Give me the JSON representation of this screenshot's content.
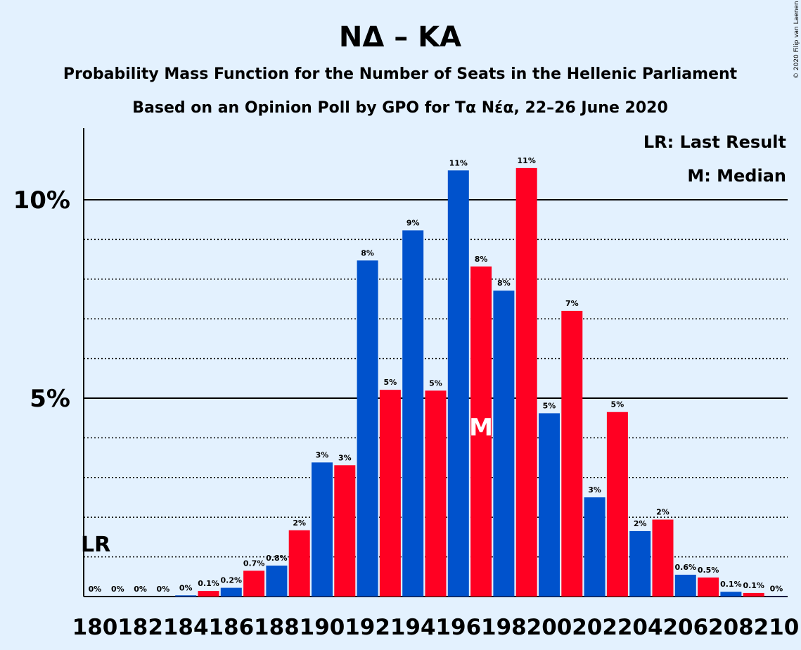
{
  "chart_data": {
    "type": "bar",
    "title": "ΝΔ – ΚΑ",
    "subtitle": "Probability Mass Function for the Number of Seats in the Hellenic Parliament",
    "subtitle2": "Based on an Opinion Poll by GPO for Τα Νέα, 22–26 June 2020",
    "copyright": "© 2020 Filip van Laenen",
    "legend": {
      "lr": "LR: Last Result",
      "median": "M: Median",
      "placement": "top-right"
    },
    "ylim": [
      0,
      11.8
    ],
    "yticks": [
      {
        "value": 5,
        "label": "5%"
      },
      {
        "value": 10,
        "label": "10%"
      }
    ],
    "minor_grid": [
      1,
      2,
      3,
      4,
      6,
      7,
      8,
      9
    ],
    "x_tick_labels": [
      "180",
      "182",
      "184",
      "186",
      "188",
      "190",
      "192",
      "194",
      "196",
      "198",
      "200",
      "202",
      "204",
      "206",
      "208",
      "210"
    ],
    "x": [
      180,
      181,
      182,
      183,
      184,
      185,
      186,
      187,
      188,
      189,
      190,
      191,
      192,
      193,
      194,
      195,
      196,
      197,
      198,
      199,
      200,
      201,
      202,
      203,
      204,
      205,
      206,
      207,
      208,
      209,
      210
    ],
    "values": [
      0,
      0,
      0,
      0,
      0.03,
      0.14,
      0.22,
      0.65,
      0.78,
      1.67,
      3.38,
      3.31,
      8.47,
      5.21,
      9.23,
      5.19,
      10.74,
      8.32,
      7.71,
      10.8,
      4.62,
      7.2,
      2.5,
      4.65,
      1.65,
      1.94,
      0.55,
      0.48,
      0.12,
      0.09,
      0.01
    ],
    "labels": [
      "0%",
      "0%",
      "0%",
      "0%",
      "0%",
      "0.1%",
      "0.2%",
      "0.7%",
      "0.8%",
      "2%",
      "3%",
      "3%",
      "8%",
      "5%",
      "9%",
      "5%",
      "11%",
      "8%",
      "8%",
      "11%",
      "5%",
      "7%",
      "3%",
      "5%",
      "2%",
      "2%",
      "0.6%",
      "0.5%",
      "0.1%",
      "0.1%",
      "0%"
    ],
    "colors": {
      "even": "#0052cc",
      "odd": "#ff0022"
    },
    "last_result": {
      "seat": 180,
      "label": "LR"
    },
    "median": {
      "seat": 197,
      "label": "M"
    }
  }
}
